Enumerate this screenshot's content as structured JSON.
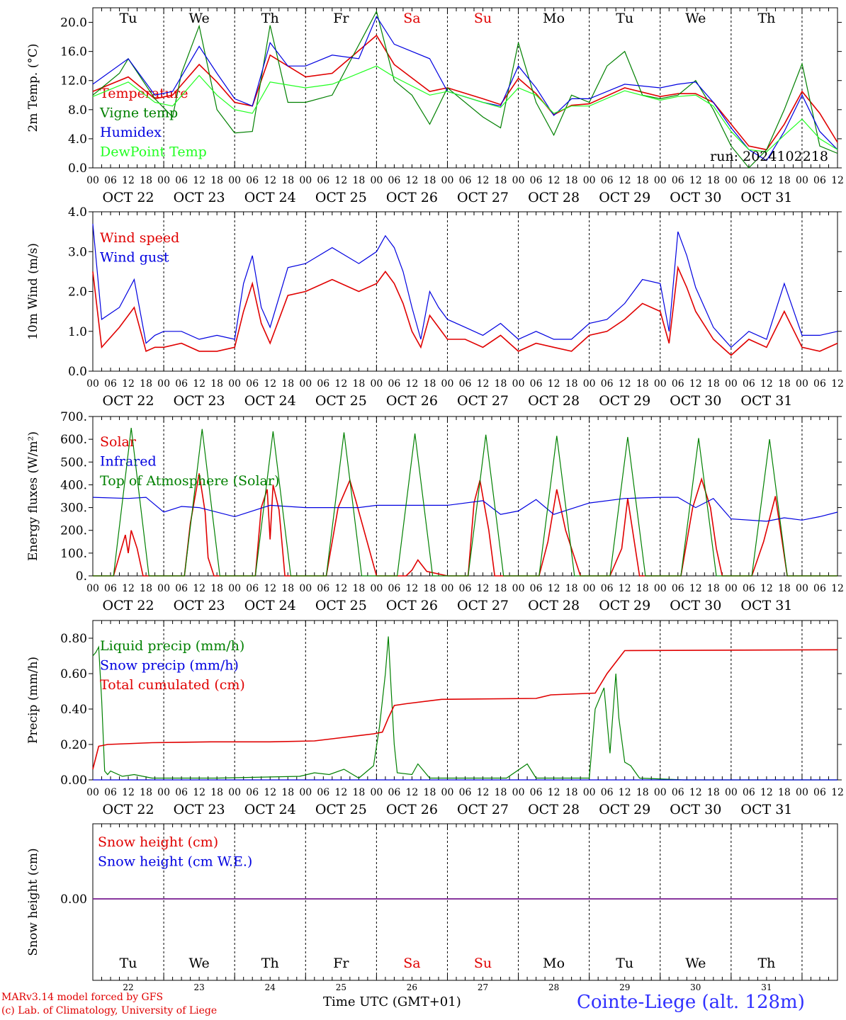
{
  "colors": {
    "red": "#e00000",
    "green": "#008000",
    "blue": "#0000e0",
    "lightgreen": "#20ff20",
    "purple": "#7a2aa0",
    "black": "#000000"
  },
  "days": [
    "Tu",
    "We",
    "Th",
    "Fr",
    "Sa",
    "Su",
    "Mo",
    "Tu",
    "We",
    "Th"
  ],
  "weekend_days": [
    4,
    5
  ],
  "date_labels": [
    "OCT 22",
    "OCT 23",
    "OCT 24",
    "OCT 25",
    "OCT 26",
    "OCT 27",
    "OCT 28",
    "OCT 29",
    "OCT 30",
    "OCT 31"
  ],
  "hour_labels": [
    "00",
    "06",
    "12",
    "18"
  ],
  "day_numbers": [
    "22",
    "23",
    "24",
    "25",
    "26",
    "27",
    "28",
    "29",
    "30",
    "31"
  ],
  "run_label": "run: 2024102218",
  "footer": {
    "model": "MARv3.14 model forced by GFS",
    "lab": "(c) Lab. of Climatology, University of Liege",
    "xlabel": "Time UTC (GMT+01)",
    "station": "Cointe-Liege (alt. 128m)"
  },
  "chart_data": [
    {
      "type": "line",
      "ylabel": "2m Temp. (°C)",
      "ylim": [
        0,
        22
      ],
      "yticks": [
        "0.0",
        "4.0",
        "8.0",
        "12.0",
        "16.0",
        "20.0"
      ],
      "x": "hours since OCT 22 00 UTC",
      "series": [
        {
          "name": "Temperature",
          "color": "red",
          "x": [
            0,
            12,
            21,
            27,
            36,
            42,
            48,
            54,
            60,
            72,
            81,
            96,
            102,
            114,
            120,
            132,
            138,
            144,
            150,
            156,
            162,
            168,
            180,
            192,
            198,
            204,
            210,
            216,
            222,
            228,
            234,
            240,
            246,
            252
          ],
          "y": [
            10.5,
            12.5,
            9.5,
            10,
            14.2,
            11.8,
            9,
            8.5,
            15.5,
            12.5,
            13,
            18.2,
            14.2,
            10.5,
            11,
            9.5,
            8.7,
            12.3,
            10.2,
            7.3,
            8.6,
            8.8,
            11,
            9.8,
            10.2,
            10.2,
            9,
            6,
            3,
            2.5,
            6,
            10.5,
            7.5,
            3.5
          ]
        },
        {
          "name": "Vigne temp",
          "color": "green",
          "x": [
            0,
            9,
            12,
            21,
            27,
            30,
            36,
            42,
            48,
            54,
            60,
            66,
            72,
            81,
            96,
            102,
            108,
            114,
            120,
            132,
            138,
            144,
            150,
            156,
            162,
            168,
            174,
            180,
            186,
            192,
            198,
            204,
            210,
            216,
            222,
            228,
            234,
            240,
            246,
            252
          ],
          "y": [
            10,
            13,
            15,
            9.5,
            7,
            13,
            19.5,
            8,
            4.8,
            5,
            19.6,
            9,
            9,
            10,
            21.5,
            12,
            10,
            6,
            11,
            7,
            5.5,
            17.2,
            9,
            4.5,
            10,
            9,
            14,
            16,
            10,
            9.5,
            10,
            12,
            8,
            3,
            0,
            2.5,
            8,
            14.3,
            3,
            2
          ]
        },
        {
          "name": "Humidex",
          "color": "blue",
          "x": [
            0,
            12,
            21,
            27,
            36,
            42,
            48,
            54,
            60,
            66,
            72,
            81,
            90,
            96,
            102,
            114,
            120,
            132,
            138,
            144,
            150,
            156,
            162,
            168,
            180,
            192,
            198,
            204,
            210,
            216,
            222,
            228,
            234,
            240,
            246,
            252
          ],
          "y": [
            11.5,
            15,
            10,
            10.5,
            16.7,
            13,
            9.5,
            8.5,
            17.2,
            14,
            14,
            15.5,
            15,
            20.8,
            17,
            15,
            10.5,
            9,
            8.5,
            14,
            11,
            7.2,
            9.5,
            9.5,
            11.5,
            11,
            11.5,
            11.8,
            9,
            5.5,
            2.5,
            1,
            5,
            10,
            5,
            2.5
          ]
        },
        {
          "name": "DewPoint Temp",
          "color": "lightgreen",
          "x": [
            0,
            12,
            21,
            27,
            36,
            42,
            48,
            54,
            60,
            72,
            81,
            96,
            102,
            114,
            120,
            132,
            138,
            144,
            150,
            156,
            162,
            168,
            180,
            192,
            198,
            204,
            210,
            216,
            222,
            228,
            234,
            240,
            246,
            252
          ],
          "y": [
            9.8,
            11.8,
            9,
            8.5,
            12.7,
            10,
            8,
            7.5,
            11.8,
            11,
            11.5,
            14,
            12.5,
            10,
            10.5,
            9,
            8.3,
            11,
            10,
            7.5,
            8.5,
            8.5,
            10.6,
            9.3,
            9.8,
            10,
            8.5,
            5,
            2.5,
            2.2,
            4.5,
            6.7,
            4,
            2.5
          ]
        }
      ]
    },
    {
      "type": "line",
      "ylabel": "10m Wind (m/s)",
      "ylim": [
        0,
        4
      ],
      "yticks": [
        "0.0",
        "1.0",
        "2.0",
        "3.0",
        "4.0"
      ],
      "series": [
        {
          "name": "Wind speed",
          "color": "red",
          "x": [
            0,
            3,
            9,
            14,
            18,
            21,
            24,
            30,
            36,
            42,
            48,
            51,
            54,
            57,
            60,
            66,
            72,
            81,
            90,
            96,
            99,
            102,
            105,
            108,
            111,
            114,
            117,
            120,
            126,
            132,
            138,
            144,
            150,
            156,
            162,
            168,
            174,
            180,
            186,
            192,
            195,
            198,
            201,
            204,
            210,
            216,
            222,
            228,
            234,
            240,
            246,
            252
          ],
          "y": [
            2.5,
            0.6,
            1.1,
            1.6,
            0.5,
            0.6,
            0.6,
            0.7,
            0.5,
            0.5,
            0.6,
            1.5,
            2.2,
            1.2,
            0.7,
            1.9,
            2.0,
            2.3,
            2.0,
            2.2,
            2.5,
            2.2,
            1.7,
            1.0,
            0.6,
            1.4,
            1.1,
            0.8,
            0.8,
            0.6,
            0.9,
            0.5,
            0.7,
            0.6,
            0.5,
            0.9,
            1.0,
            1.3,
            1.7,
            1.5,
            0.7,
            2.6,
            2.1,
            1.5,
            0.8,
            0.4,
            0.8,
            0.6,
            1.5,
            0.6,
            0.5,
            0.7
          ]
        },
        {
          "name": "Wind gust",
          "color": "blue",
          "x": [
            0,
            3,
            9,
            14,
            18,
            21,
            24,
            30,
            36,
            42,
            48,
            51,
            54,
            57,
            60,
            66,
            72,
            81,
            90,
            96,
            99,
            102,
            105,
            108,
            111,
            114,
            117,
            120,
            126,
            132,
            138,
            144,
            150,
            156,
            162,
            168,
            174,
            180,
            186,
            192,
            195,
            198,
            201,
            204,
            210,
            216,
            222,
            228,
            234,
            240,
            246,
            252
          ],
          "y": [
            3.7,
            1.3,
            1.6,
            2.3,
            0.7,
            0.9,
            1.0,
            1.0,
            0.8,
            0.9,
            0.8,
            2.2,
            2.9,
            1.6,
            1.1,
            2.6,
            2.7,
            3.1,
            2.7,
            3.0,
            3.4,
            3.1,
            2.5,
            1.6,
            0.8,
            2.0,
            1.6,
            1.3,
            1.1,
            0.9,
            1.2,
            0.8,
            1.0,
            0.8,
            0.8,
            1.2,
            1.3,
            1.7,
            2.3,
            2.2,
            1.0,
            3.5,
            2.9,
            2.1,
            1.1,
            0.6,
            1.0,
            0.8,
            2.2,
            0.9,
            0.9,
            1.0
          ]
        }
      ]
    },
    {
      "type": "line",
      "ylabel": "Energy fluxes (W/m²)",
      "ylim": [
        0,
        700
      ],
      "yticks": [
        "0.",
        "100.",
        "200.",
        "300.",
        "400.",
        "500.",
        "600.",
        "700."
      ],
      "series": [
        {
          "name": "Solar",
          "color": "red",
          "x": [
            0,
            7,
            9,
            11,
            12,
            13,
            15,
            17,
            24,
            31,
            33,
            36,
            38,
            39,
            41,
            48,
            55,
            57,
            59,
            60,
            61,
            63,
            65,
            72,
            79,
            83,
            87,
            89,
            96,
            103,
            106,
            108,
            110,
            113,
            120,
            127,
            129,
            131,
            134,
            136,
            144,
            151,
            154,
            157,
            160,
            165,
            168,
            175,
            177,
            179,
            181,
            185,
            192,
            199,
            203,
            206,
            209,
            211,
            213,
            216,
            223,
            227,
            231,
            235,
            240,
            247,
            249,
            252
          ],
          "y": [
            0,
            0,
            90,
            180,
            100,
            200,
            120,
            0,
            0,
            0,
            230,
            450,
            280,
            80,
            0,
            0,
            0,
            300,
            380,
            160,
            400,
            290,
            0,
            0,
            0,
            300,
            420,
            330,
            0,
            0,
            0,
            25,
            70,
            20,
            0,
            0,
            320,
            420,
            200,
            0,
            0,
            0,
            150,
            380,
            200,
            0,
            0,
            0,
            60,
            120,
            340,
            0,
            0,
            0,
            300,
            425,
            300,
            120,
            0,
            0,
            0,
            150,
            350,
            0,
            0,
            0,
            0,
            0
          ]
        },
        {
          "name": "Infrared",
          "color": "blue",
          "x": [
            0,
            12,
            18,
            24,
            30,
            36,
            48,
            60,
            72,
            90,
            96,
            120,
            132,
            138,
            144,
            150,
            156,
            168,
            180,
            192,
            198,
            204,
            210,
            216,
            228,
            234,
            240,
            246,
            252
          ],
          "y": [
            345,
            340,
            345,
            280,
            305,
            300,
            260,
            310,
            300,
            300,
            310,
            310,
            330,
            270,
            285,
            335,
            270,
            320,
            340,
            345,
            345,
            300,
            340,
            250,
            240,
            255,
            245,
            260,
            280
          ]
        },
        {
          "name": "Top of Atmosphere (Solar)",
          "color": "green",
          "x": [
            0,
            7,
            13,
            19,
            31,
            37,
            43,
            55,
            61,
            67,
            79,
            85,
            91,
            103,
            109,
            115,
            127,
            133,
            139,
            151,
            157,
            163,
            175,
            181,
            187,
            199,
            205,
            211,
            223,
            229,
            235,
            247,
            252
          ],
          "y": [
            0,
            0,
            650,
            0,
            0,
            645,
            0,
            0,
            635,
            0,
            0,
            630,
            0,
            0,
            625,
            0,
            0,
            620,
            0,
            0,
            615,
            0,
            0,
            610,
            0,
            0,
            605,
            0,
            0,
            600,
            0,
            0,
            0
          ]
        }
      ]
    },
    {
      "type": "line",
      "ylabel": "Precip (mm/h)",
      "ylim": [
        0,
        0.9
      ],
      "yticks": [
        "0.00",
        "0.20",
        "0.40",
        "0.60",
        "0.80"
      ],
      "series": [
        {
          "name": "Liquid precip (mm/h)",
          "color": "green",
          "x": [
            0,
            1,
            2,
            3,
            4,
            5,
            6,
            10,
            14,
            20,
            30,
            42,
            70,
            75,
            80,
            85,
            90,
            95,
            97,
            99,
            100,
            101,
            102,
            103,
            108,
            110,
            114,
            126,
            130,
            140,
            147,
            150,
            160,
            168,
            170,
            173,
            175,
            177,
            178,
            180,
            182,
            185,
            200,
            252
          ],
          "y": [
            0.7,
            0.72,
            0.75,
            0.45,
            0.05,
            0.03,
            0.05,
            0.02,
            0.03,
            0.01,
            0.01,
            0.01,
            0.02,
            0.04,
            0.03,
            0.06,
            0.01,
            0.08,
            0.3,
            0.6,
            0.81,
            0.5,
            0.2,
            0.04,
            0.03,
            0.09,
            0.01,
            0.01,
            0.01,
            0.01,
            0.09,
            0.01,
            0.01,
            0.01,
            0.4,
            0.52,
            0.15,
            0.6,
            0.35,
            0.1,
            0.08,
            0.01,
            0.0,
            0.0
          ]
        },
        {
          "name": "Snow precip (mm/h)",
          "color": "blue",
          "x": [
            0,
            252
          ],
          "y": [
            0,
            0
          ]
        },
        {
          "name": "Total cumulated (cm)",
          "color": "red",
          "x": [
            0,
            2,
            5,
            20,
            40,
            60,
            75,
            85,
            95,
            98,
            100,
            102,
            106,
            118,
            150,
            155,
            170,
            174,
            180,
            252
          ],
          "y": [
            0.06,
            0.19,
            0.2,
            0.21,
            0.215,
            0.215,
            0.22,
            0.24,
            0.26,
            0.27,
            0.35,
            0.42,
            0.43,
            0.455,
            0.46,
            0.48,
            0.49,
            0.6,
            0.73,
            0.735
          ]
        }
      ]
    },
    {
      "type": "line",
      "ylabel": "Snow height (cm)",
      "yticks": [
        "0.00"
      ],
      "series": [
        {
          "name": "Snow height (cm)",
          "color": "red",
          "x": [
            0,
            252
          ],
          "y": [
            0,
            0
          ]
        },
        {
          "name": "Snow height (cm W.E.)",
          "color": "blue",
          "x": [
            0,
            252
          ],
          "y": [
            0,
            0
          ]
        }
      ]
    }
  ]
}
